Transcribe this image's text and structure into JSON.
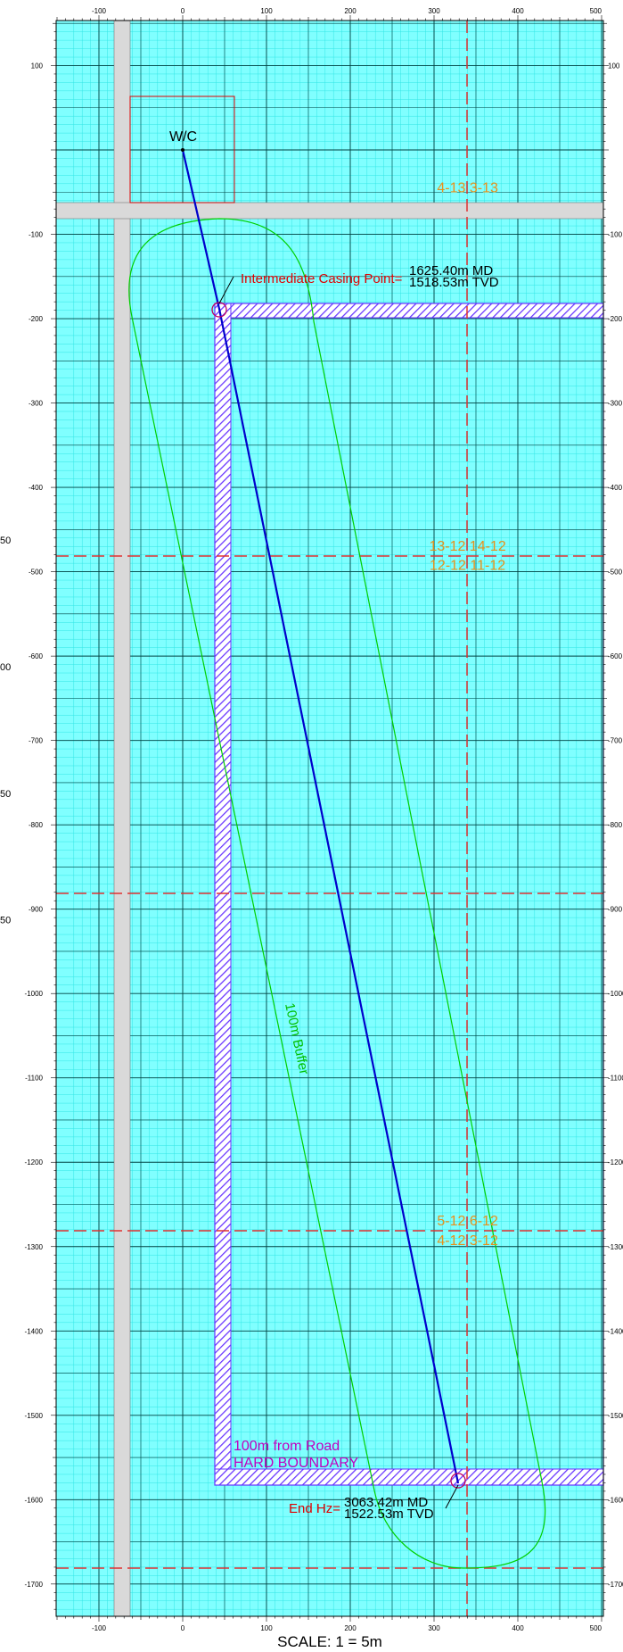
{
  "map": {
    "scale_label": "SCALE: 1 = 5m",
    "x_ticks": [
      -100,
      0,
      100,
      200,
      300,
      400,
      500
    ],
    "y_ticks": [
      100,
      -100,
      -200,
      -300,
      -400,
      -500,
      -600,
      -700,
      -800,
      -900,
      -1000,
      -1100,
      -1200,
      -1300,
      -1400,
      -1500,
      -1600,
      -1700
    ],
    "left_edge_labels": [
      {
        "text": "50",
        "y": -470
      },
      {
        "text": "00",
        "y": -620
      },
      {
        "text": "50",
        "y": -770
      },
      {
        "text": "50",
        "y": -920
      }
    ],
    "colors": {
      "grid_background": "#80ffff",
      "minor_grid": "#33e6e6",
      "major_grid": "#004040",
      "road": "#d9d9d9",
      "well_path": "#0000cc",
      "buffer": "#00d000",
      "hatch": "#6633ff",
      "section_line": "#e03030",
      "lsd_label": "#e8901a",
      "red_text": "#e00000",
      "magenta_text": "#c000c0"
    },
    "wellhead_label": "W/C",
    "intermediate_casing": {
      "label": "Intermediate Casing Point=",
      "md": "1625.40m MD",
      "tvd": "1518.53m TVD",
      "x": 45,
      "y": -190
    },
    "end_point": {
      "label": "End Hz=",
      "md": "3063.42m MD",
      "tvd": "1522.53m TVD",
      "x": 330,
      "y": -1590
    },
    "buffer_label": "100m Buffer",
    "hard_boundary_label_1": "100m from Road",
    "hard_boundary_label_2": "HARD BOUNDARY",
    "lsd_labels": [
      {
        "text": "4-13  3-13",
        "x": 340,
        "y": -50
      },
      {
        "text": "13-12  14-12",
        "x": 340,
        "y": -475
      },
      {
        "text": "12-12  11-12",
        "x": 340,
        "y": -498
      },
      {
        "text": "5-12  6-12",
        "x": 340,
        "y": -1275
      },
      {
        "text": "4-12  3-12",
        "x": 340,
        "y": -1298
      }
    ]
  }
}
